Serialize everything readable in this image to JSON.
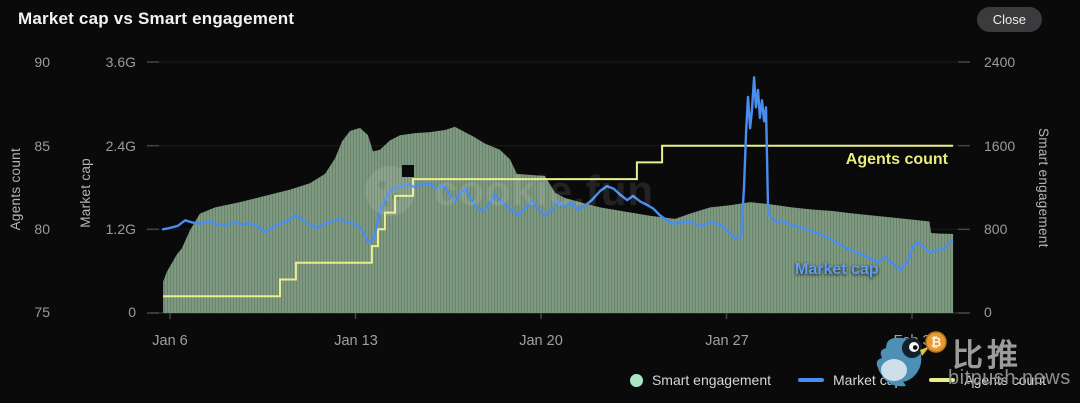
{
  "header": {
    "title": "Market cap vs Smart engagement",
    "close_label": "Close"
  },
  "axes": {
    "agents": {
      "title": "Agents count",
      "ticks": [
        "90",
        "85",
        "80",
        "75"
      ]
    },
    "market_cap": {
      "title": "Market cap",
      "ticks": [
        "3.6G",
        "2.4G",
        "1.2G",
        "0"
      ]
    },
    "engagement": {
      "title": "Smart engagement",
      "ticks": [
        "2400",
        "1600",
        "800",
        "0"
      ]
    },
    "x": {
      "ticks": [
        "Jan 6",
        "Jan 13",
        "Jan 20",
        "Jan 27",
        "Feb 3"
      ]
    }
  },
  "chart_labels": {
    "agents_line": "Agents count",
    "market_cap_line": "Market cap"
  },
  "legend": [
    {
      "label": "Smart engagement",
      "color": "#a9e7c3",
      "marker": "dot"
    },
    {
      "label": "Market cap",
      "color": "#4a8df0",
      "marker": "line"
    },
    {
      "label": "Agents count",
      "color": "#e9ee8e",
      "marker": "line"
    }
  ],
  "watermark": {
    "text": "cookie.fun"
  },
  "branding": {
    "name": "比推",
    "domain": "bitpush.news"
  },
  "colors": {
    "background": "#0a0a0b",
    "market_cap_blue": "#4a8df0",
    "agents_yellow": "#e9ee8e",
    "engagement_green": "#a9e7c3",
    "area_fill": "#7e9a81",
    "text_muted": "#9b9b9b"
  },
  "chart_data": {
    "type": "mixed",
    "title": "Market cap vs Smart engagement",
    "x_domain_days": [
      -0.26,
      29.55
    ],
    "x_tick_days": [
      0,
      7,
      14,
      21,
      28
    ],
    "x_tick_labels": [
      "Jan 6",
      "Jan 13",
      "Jan 20",
      "Jan 27",
      "Feb 3"
    ],
    "axes": {
      "agents": {
        "min": 75,
        "max": 90,
        "ticks": [
          90,
          85,
          80,
          75
        ],
        "side": "left"
      },
      "market_cap": {
        "min": 0,
        "max": 3.6,
        "ticks": [
          3.6,
          2.4,
          1.2,
          0
        ],
        "side": "left",
        "unit": "G"
      },
      "engagement": {
        "min": 0,
        "max": 2400,
        "ticks": [
          2400,
          1600,
          800,
          0
        ],
        "side": "right"
      }
    },
    "grid": true,
    "legend_position": "bottom-right",
    "series": [
      {
        "name": "Smart engagement",
        "type": "area",
        "axis": "engagement",
        "color": "#a9e7c3",
        "fill": "#7e9a81",
        "points": [
          [
            -0.26,
            300
          ],
          [
            -0.11,
            400
          ],
          [
            0.08,
            480
          ],
          [
            0.26,
            560
          ],
          [
            0.45,
            620
          ],
          [
            0.75,
            790
          ],
          [
            1.13,
            950
          ],
          [
            1.7,
            1010
          ],
          [
            2.64,
            1060
          ],
          [
            3.58,
            1120
          ],
          [
            4.53,
            1180
          ],
          [
            5.28,
            1240
          ],
          [
            5.85,
            1330
          ],
          [
            6.23,
            1480
          ],
          [
            6.49,
            1640
          ],
          [
            6.79,
            1740
          ],
          [
            7.17,
            1770
          ],
          [
            7.47,
            1700
          ],
          [
            7.66,
            1545
          ],
          [
            7.92,
            1560
          ],
          [
            8.3,
            1650
          ],
          [
            8.68,
            1700
          ],
          [
            9.25,
            1720
          ],
          [
            9.81,
            1730
          ],
          [
            10.38,
            1750
          ],
          [
            10.75,
            1780
          ],
          [
            11.13,
            1730
          ],
          [
            11.43,
            1690
          ],
          [
            11.89,
            1620
          ],
          [
            12.45,
            1560
          ],
          [
            12.83,
            1470
          ],
          [
            13.09,
            1330
          ],
          [
            13.58,
            1320
          ],
          [
            14.15,
            1310
          ],
          [
            14.53,
            1150
          ],
          [
            14.91,
            1100
          ],
          [
            15.47,
            1060
          ],
          [
            16.23,
            1010
          ],
          [
            17.17,
            970
          ],
          [
            18.11,
            930
          ],
          [
            19.06,
            900
          ],
          [
            19.62,
            950
          ],
          [
            20.38,
            1010
          ],
          [
            21.13,
            1030
          ],
          [
            21.89,
            1060
          ],
          [
            22.64,
            1040
          ],
          [
            23.47,
            1010
          ],
          [
            24.23,
            990
          ],
          [
            25.0,
            975
          ],
          [
            25.66,
            955
          ],
          [
            26.42,
            935
          ],
          [
            27.17,
            915
          ],
          [
            27.92,
            895
          ],
          [
            28.49,
            880
          ],
          [
            28.66,
            875
          ],
          [
            28.72,
            765
          ],
          [
            29.0,
            760
          ],
          [
            29.55,
            755
          ]
        ]
      },
      {
        "name": "Agents count",
        "type": "step",
        "axis": "agents",
        "color": "#e9ee8e",
        "points": [
          [
            -0.26,
            76
          ],
          [
            4.15,
            77
          ],
          [
            4.75,
            78
          ],
          [
            7.62,
            79
          ],
          [
            7.85,
            80
          ],
          [
            8.11,
            81
          ],
          [
            8.49,
            82
          ],
          [
            9.17,
            83
          ],
          [
            17.62,
            84
          ],
          [
            18.57,
            85
          ],
          [
            29.55,
            85
          ]
        ]
      },
      {
        "name": "Market cap",
        "type": "line",
        "axis": "market_cap",
        "color": "#4a8df0",
        "unit": "G",
        "points": [
          [
            -0.26,
            1.2
          ],
          [
            0,
            1.22
          ],
          [
            0.3,
            1.25
          ],
          [
            0.57,
            1.33
          ],
          [
            0.83,
            1.3
          ],
          [
            1.13,
            1.28
          ],
          [
            1.43,
            1.32
          ],
          [
            1.7,
            1.28
          ],
          [
            2.08,
            1.26
          ],
          [
            2.45,
            1.3
          ],
          [
            2.72,
            1.27
          ],
          [
            3.02,
            1.29
          ],
          [
            3.32,
            1.24
          ],
          [
            3.58,
            1.16
          ],
          [
            3.85,
            1.22
          ],
          [
            4.15,
            1.28
          ],
          [
            4.45,
            1.32
          ],
          [
            4.72,
            1.4
          ],
          [
            4.98,
            1.35
          ],
          [
            5.28,
            1.26
          ],
          [
            5.58,
            1.22
          ],
          [
            5.85,
            1.28
          ],
          [
            6.15,
            1.32
          ],
          [
            6.42,
            1.35
          ],
          [
            6.72,
            1.3
          ],
          [
            6.98,
            1.28
          ],
          [
            7.25,
            1.2
          ],
          [
            7.47,
            1.02
          ],
          [
            7.7,
            1.07
          ],
          [
            7.92,
            1.45
          ],
          [
            8.15,
            1.65
          ],
          [
            8.38,
            1.78
          ],
          [
            8.68,
            1.82
          ],
          [
            8.98,
            1.85
          ],
          [
            9.25,
            1.8
          ],
          [
            9.51,
            1.86
          ],
          [
            9.81,
            1.85
          ],
          [
            10.08,
            1.78
          ],
          [
            10.3,
            1.84
          ],
          [
            10.57,
            1.68
          ],
          [
            10.75,
            1.6
          ],
          [
            10.94,
            1.72
          ],
          [
            11.17,
            1.78
          ],
          [
            11.4,
            1.6
          ],
          [
            11.62,
            1.5
          ],
          [
            11.85,
            1.46
          ],
          [
            12.08,
            1.58
          ],
          [
            12.26,
            1.7
          ],
          [
            12.45,
            1.62
          ],
          [
            12.64,
            1.55
          ],
          [
            12.91,
            1.48
          ],
          [
            13.13,
            1.4
          ],
          [
            13.4,
            1.5
          ],
          [
            13.66,
            1.6
          ],
          [
            13.89,
            1.5
          ],
          [
            14.15,
            1.4
          ],
          [
            14.42,
            1.48
          ],
          [
            14.64,
            1.6
          ],
          [
            14.91,
            1.52
          ],
          [
            15.17,
            1.58
          ],
          [
            15.4,
            1.48
          ],
          [
            15.66,
            1.54
          ],
          [
            15.92,
            1.62
          ],
          [
            16.23,
            1.75
          ],
          [
            16.49,
            1.82
          ],
          [
            16.75,
            1.78
          ],
          [
            16.98,
            1.7
          ],
          [
            17.25,
            1.62
          ],
          [
            17.47,
            1.68
          ],
          [
            17.74,
            1.6
          ],
          [
            18,
            1.55
          ],
          [
            18.23,
            1.5
          ],
          [
            18.49,
            1.4
          ],
          [
            18.79,
            1.32
          ],
          [
            19.02,
            1.28
          ],
          [
            19.25,
            1.3
          ],
          [
            19.55,
            1.32
          ],
          [
            19.81,
            1.28
          ],
          [
            20.08,
            1.25
          ],
          [
            20.38,
            1.3
          ],
          [
            20.68,
            1.28
          ],
          [
            20.94,
            1.22
          ],
          [
            21.17,
            1.12
          ],
          [
            21.4,
            1.06
          ],
          [
            21.55,
            1.1
          ],
          [
            21.66,
            1.8
          ],
          [
            21.74,
            2.6
          ],
          [
            21.81,
            3.1
          ],
          [
            21.89,
            2.65
          ],
          [
            21.96,
            2.9
          ],
          [
            22.04,
            3.38
          ],
          [
            22.11,
            2.95
          ],
          [
            22.19,
            3.2
          ],
          [
            22.26,
            2.8
          ],
          [
            22.34,
            3.05
          ],
          [
            22.42,
            2.75
          ],
          [
            22.49,
            2.95
          ],
          [
            22.57,
            1.45
          ],
          [
            22.72,
            1.35
          ],
          [
            22.91,
            1.3
          ],
          [
            23.09,
            1.33
          ],
          [
            23.32,
            1.28
          ],
          [
            23.58,
            1.25
          ],
          [
            23.85,
            1.22
          ],
          [
            24.15,
            1.18
          ],
          [
            24.45,
            1.14
          ],
          [
            24.72,
            1.1
          ],
          [
            24.98,
            1.05
          ],
          [
            25.28,
            0.98
          ],
          [
            25.58,
            0.92
          ],
          [
            25.85,
            0.88
          ],
          [
            26.11,
            0.84
          ],
          [
            26.42,
            0.78
          ],
          [
            26.72,
            0.73
          ],
          [
            26.98,
            0.8
          ],
          [
            27.25,
            0.72
          ],
          [
            27.55,
            0.62
          ],
          [
            27.81,
            0.72
          ],
          [
            28.04,
            0.96
          ],
          [
            28.23,
            1.02
          ],
          [
            28.45,
            0.94
          ],
          [
            28.68,
            0.86
          ],
          [
            28.91,
            0.9
          ],
          [
            29.21,
            0.92
          ],
          [
            29.51,
            1.04
          ]
        ]
      }
    ]
  }
}
